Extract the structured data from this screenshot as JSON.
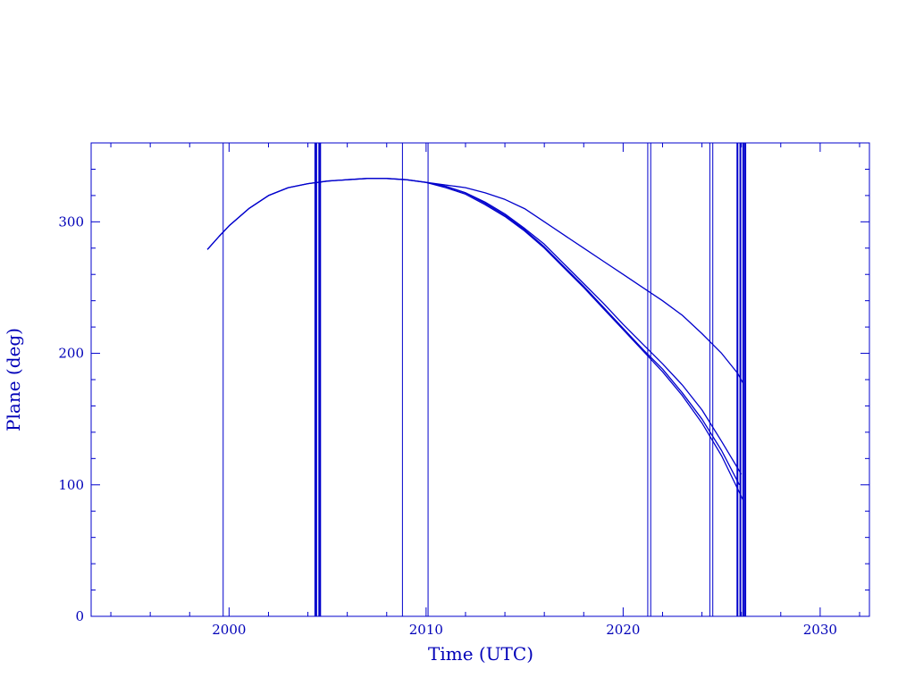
{
  "chart_data": {
    "type": "line",
    "title": "",
    "xlabel": "Time (UTC)",
    "ylabel": "Plane (deg)",
    "xlim": [
      1993.0,
      2032.5
    ],
    "ylim": [
      0,
      360
    ],
    "x_ticks": [
      2000,
      2010,
      2020,
      2030
    ],
    "y_ticks": [
      0,
      100,
      200,
      300
    ],
    "x_minor_step": 2,
    "y_minor_step": 20,
    "grid": false,
    "legend": "none",
    "color": "#0000cc",
    "vertical_lines": [
      {
        "x": 1999.7,
        "weight": 1
      },
      {
        "x": 2004.4,
        "weight": 3
      },
      {
        "x": 2004.6,
        "weight": 3
      },
      {
        "x": 2008.8,
        "weight": 1
      },
      {
        "x": 2010.1,
        "weight": 1
      },
      {
        "x": 2021.25,
        "weight": 1
      },
      {
        "x": 2021.4,
        "weight": 1
      },
      {
        "x": 2024.4,
        "weight": 1
      },
      {
        "x": 2024.55,
        "weight": 1
      },
      {
        "x": 2025.8,
        "weight": 2
      },
      {
        "x": 2025.95,
        "weight": 2
      },
      {
        "x": 2026.1,
        "weight": 2
      },
      {
        "x": 2026.2,
        "weight": 2
      }
    ],
    "series": [
      {
        "x": [
          1998.9,
          1999.5,
          2000.0,
          2001.0,
          2002.0,
          2003.0,
          2004.0,
          2005.0,
          2006.0,
          2007.0,
          2008.0,
          2009.0,
          2010.0,
          2011.0,
          2012.0,
          2013.0,
          2014.0,
          2015.0,
          2016.0,
          2017.0,
          2018.0,
          2019.0,
          2020.0,
          2021.0,
          2022.0,
          2023.0,
          2024.0,
          2025.0,
          2025.8,
          2026.1
        ],
        "y": [
          279,
          289,
          297,
          310,
          320,
          326,
          329,
          331,
          332,
          333,
          333,
          332,
          330,
          328,
          326,
          322,
          317,
          310,
          300,
          290,
          280,
          270,
          260,
          250,
          240,
          229,
          215,
          200,
          185,
          177
        ]
      },
      {
        "x": [
          1998.9,
          1999.5,
          2000.0,
          2001.0,
          2002.0,
          2003.0,
          2004.0,
          2005.0,
          2006.0,
          2007.0,
          2008.0,
          2009.0,
          2010.0,
          2011.0,
          2012.0,
          2013.0,
          2014.0,
          2015.0,
          2016.0,
          2017.0,
          2018.0,
          2019.0,
          2020.0,
          2021.0,
          2022.0,
          2023.0,
          2024.0,
          2025.0,
          2025.9
        ],
        "y": [
          279,
          289,
          297,
          310,
          320,
          326,
          329,
          331,
          332,
          333,
          333,
          332,
          330,
          327,
          322,
          314,
          305,
          294,
          281,
          266,
          251,
          235,
          219,
          203,
          188,
          170,
          150,
          126,
          100
        ]
      },
      {
        "x": [
          2010.0,
          2011.0,
          2012.0,
          2013.0,
          2014.0,
          2015.0,
          2016.0,
          2017.0,
          2018.0,
          2019.0,
          2020.0,
          2021.0,
          2022.0,
          2023.0,
          2024.0,
          2025.0,
          2026.0
        ],
        "y": [
          330,
          327,
          322,
          315,
          306,
          295,
          283,
          268,
          253,
          238,
          222,
          207,
          192,
          176,
          157,
          133,
          108
        ]
      },
      {
        "x": [
          2010.0,
          2011.0,
          2012.0,
          2013.0,
          2014.0,
          2015.0,
          2016.0,
          2017.0,
          2018.0,
          2019.0,
          2020.0,
          2021.0,
          2022.0,
          2023.0,
          2024.0,
          2025.0,
          2026.1
        ],
        "y": [
          330,
          326,
          321,
          313,
          304,
          293,
          280,
          265,
          250,
          234,
          218,
          202,
          186,
          168,
          147,
          122,
          88
        ]
      }
    ]
  }
}
